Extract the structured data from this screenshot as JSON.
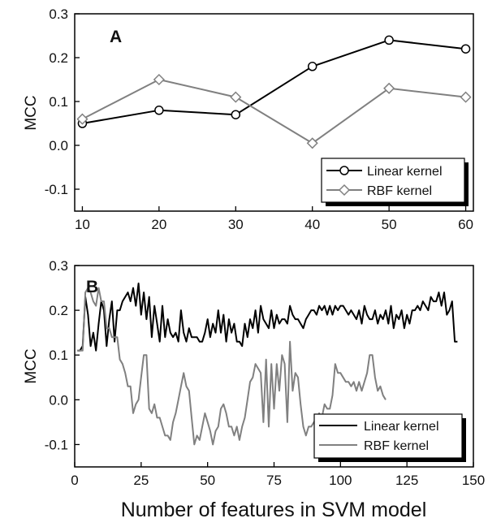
{
  "figure": {
    "xlabel": "Number of features in SVM model"
  },
  "chart_data": [
    {
      "type": "line",
      "panel_label": "A",
      "ylabel": "MCC",
      "xlabel": "",
      "xlim": [
        9,
        61
      ],
      "ylim": [
        -0.15,
        0.3
      ],
      "xticks": [
        10,
        20,
        30,
        40,
        50,
        60
      ],
      "yticks": [
        -0.1,
        0.0,
        0.1,
        0.2,
        0.3
      ],
      "ytick_labels": [
        "-0.1",
        "0.0",
        "0.1",
        "0.2",
        "0.3"
      ],
      "grid": false,
      "legend_position": "bottom-right",
      "series": [
        {
          "name": "Linear kernel",
          "color": "#000000",
          "marker": "circle",
          "x": [
            10,
            20,
            30,
            40,
            50,
            60
          ],
          "y": [
            0.05,
            0.08,
            0.07,
            0.18,
            0.24,
            0.22
          ]
        },
        {
          "name": "RBF kernel",
          "color": "#808080",
          "marker": "diamond",
          "x": [
            10,
            20,
            30,
            40,
            50,
            60
          ],
          "y": [
            0.06,
            0.15,
            0.11,
            0.005,
            0.13,
            0.11
          ]
        }
      ]
    },
    {
      "type": "line",
      "panel_label": "B",
      "ylabel": "MCC",
      "xlabel": "",
      "xlim": [
        0,
        150
      ],
      "ylim": [
        -0.15,
        0.3
      ],
      "xticks": [
        0,
        25,
        50,
        75,
        100,
        125,
        150
      ],
      "yticks": [
        -0.1,
        0.0,
        0.1,
        0.2,
        0.3
      ],
      "ytick_labels": [
        "-0.1",
        "0.0",
        "0.1",
        "0.2",
        "0.3"
      ],
      "grid": false,
      "legend_position": "bottom-right",
      "series": [
        {
          "name": "Linear kernel",
          "color": "#000000",
          "marker": "none",
          "x": [
            1,
            2,
            3,
            4,
            5,
            6,
            7,
            8,
            9,
            10,
            11,
            12,
            13,
            14,
            15,
            16,
            17,
            18,
            19,
            20,
            21,
            22,
            23,
            24,
            25,
            26,
            27,
            28,
            29,
            30,
            31,
            32,
            33,
            34,
            35,
            36,
            37,
            38,
            39,
            40,
            41,
            42,
            43,
            44,
            45,
            46,
            47,
            48,
            49,
            50,
            51,
            52,
            53,
            54,
            55,
            56,
            57,
            58,
            59,
            60,
            61,
            62,
            63,
            64,
            65,
            66,
            67,
            68,
            69,
            70,
            71,
            72,
            73,
            74,
            75,
            76,
            77,
            78,
            79,
            80,
            81,
            82,
            83,
            84,
            85,
            86,
            87,
            88,
            89,
            90,
            91,
            92,
            93,
            94,
            95,
            96,
            97,
            98,
            99,
            100,
            101,
            102,
            103,
            104,
            105,
            106,
            107,
            108,
            109,
            110,
            111,
            112,
            113,
            114,
            115,
            116,
            117,
            118,
            119,
            120,
            121,
            122,
            123,
            124,
            125,
            126,
            127,
            128,
            129,
            130,
            131,
            132,
            133,
            134,
            135,
            136,
            137,
            138,
            139,
            140,
            141,
            142,
            143,
            144
          ],
          "y": [
            0.11,
            0.11,
            0.12,
            0.23,
            0.19,
            0.12,
            0.15,
            0.11,
            0.17,
            0.22,
            0.2,
            0.12,
            0.18,
            0.22,
            0.13,
            0.2,
            0.2,
            0.22,
            0.23,
            0.24,
            0.22,
            0.25,
            0.21,
            0.26,
            0.19,
            0.24,
            0.18,
            0.23,
            0.14,
            0.21,
            0.17,
            0.13,
            0.21,
            0.14,
            0.18,
            0.15,
            0.14,
            0.15,
            0.13,
            0.2,
            0.15,
            0.13,
            0.16,
            0.14,
            0.14,
            0.14,
            0.13,
            0.13,
            0.15,
            0.18,
            0.14,
            0.17,
            0.15,
            0.2,
            0.15,
            0.19,
            0.13,
            0.18,
            0.15,
            0.17,
            0.13,
            0.13,
            0.12,
            0.17,
            0.14,
            0.18,
            0.16,
            0.2,
            0.15,
            0.21,
            0.18,
            0.17,
            0.16,
            0.2,
            0.16,
            0.19,
            0.17,
            0.18,
            0.18,
            0.17,
            0.21,
            0.19,
            0.18,
            0.18,
            0.17,
            0.16,
            0.18,
            0.19,
            0.2,
            0.2,
            0.19,
            0.21,
            0.2,
            0.21,
            0.19,
            0.21,
            0.19,
            0.21,
            0.2,
            0.21,
            0.21,
            0.2,
            0.19,
            0.2,
            0.19,
            0.18,
            0.2,
            0.17,
            0.21,
            0.19,
            0.18,
            0.18,
            0.2,
            0.17,
            0.19,
            0.18,
            0.2,
            0.17,
            0.21,
            0.16,
            0.19,
            0.18,
            0.2,
            0.16,
            0.19,
            0.17,
            0.2,
            0.2,
            0.21,
            0.2,
            0.22,
            0.21,
            0.2,
            0.23,
            0.22,
            0.22,
            0.24,
            0.21,
            0.24,
            0.19,
            0.2,
            0.22,
            0.13,
            0.13
          ]
        },
        {
          "name": "RBF kernel",
          "color": "#808080",
          "marker": "none",
          "x": [
            1,
            2,
            3,
            4,
            5,
            6,
            7,
            8,
            9,
            10,
            11,
            12,
            13,
            14,
            15,
            16,
            17,
            18,
            19,
            20,
            21,
            22,
            23,
            24,
            25,
            26,
            27,
            28,
            29,
            30,
            31,
            32,
            33,
            34,
            35,
            36,
            37,
            38,
            39,
            40,
            41,
            42,
            43,
            44,
            45,
            46,
            47,
            48,
            49,
            50,
            51,
            52,
            53,
            54,
            55,
            56,
            57,
            58,
            59,
            60,
            61,
            62,
            63,
            64,
            65,
            66,
            67,
            68,
            69,
            70,
            71,
            72,
            73,
            74,
            75,
            76,
            77,
            78,
            79,
            80,
            81,
            82,
            83,
            84,
            85,
            86,
            87,
            88,
            89,
            90,
            91,
            92,
            93,
            94,
            95,
            96,
            97,
            98,
            99,
            100,
            101,
            102,
            103,
            104,
            105,
            106,
            107,
            108,
            109,
            110,
            111,
            112,
            113,
            114,
            115,
            116,
            117
          ],
          "y": [
            0.11,
            0.11,
            0.11,
            0.24,
            0.25,
            0.24,
            0.22,
            0.21,
            0.25,
            0.22,
            0.22,
            0.16,
            0.16,
            0.14,
            0.14,
            0.14,
            0.09,
            0.08,
            0.06,
            0.03,
            0.03,
            -0.03,
            -0.01,
            0.0,
            0.05,
            0.1,
            0.1,
            -0.02,
            -0.03,
            -0.01,
            -0.04,
            -0.04,
            -0.06,
            -0.08,
            -0.08,
            -0.09,
            -0.05,
            -0.03,
            0.0,
            0.03,
            0.06,
            0.03,
            0.02,
            -0.04,
            -0.1,
            -0.08,
            -0.09,
            -0.06,
            -0.03,
            -0.05,
            -0.07,
            -0.1,
            -0.07,
            -0.06,
            -0.02,
            -0.01,
            -0.03,
            -0.06,
            -0.06,
            -0.08,
            -0.06,
            -0.09,
            -0.06,
            -0.04,
            0.0,
            0.04,
            0.05,
            0.08,
            0.07,
            0.06,
            -0.05,
            0.09,
            -0.06,
            0.08,
            -0.02,
            0.08,
            0.02,
            0.1,
            0.08,
            -0.05,
            0.13,
            0.02,
            0.06,
            0.05,
            -0.01,
            -0.06,
            -0.08,
            -0.06,
            -0.06,
            -0.05,
            -0.04,
            -0.03,
            -0.04,
            -0.01,
            -0.02,
            -0.02,
            0.01,
            0.08,
            0.06,
            0.06,
            0.05,
            0.04,
            0.04,
            0.03,
            0.04,
            0.02,
            0.04,
            0.02,
            0.04,
            0.06,
            0.1,
            0.1,
            0.05,
            0.02,
            0.03,
            0.01,
            0.0
          ]
        }
      ]
    }
  ]
}
